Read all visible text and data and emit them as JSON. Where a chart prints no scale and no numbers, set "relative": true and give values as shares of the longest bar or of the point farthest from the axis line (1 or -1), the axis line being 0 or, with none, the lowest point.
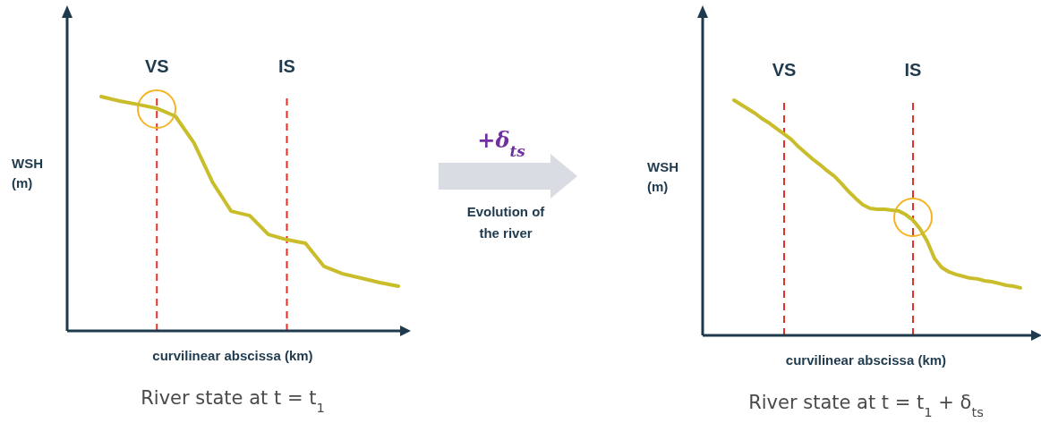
{
  "chart_data": [
    {
      "type": "line",
      "relative": true,
      "xlabel": "curvilinear abscissa (km)",
      "ylabel": "WSH (m)",
      "title": "River state at t = t$_{1}$",
      "categories": [
        null,
        null,
        null,
        "VS",
        null,
        null,
        null,
        null,
        null,
        null,
        "IS",
        null,
        null,
        null,
        null,
        null,
        null
      ],
      "series": [
        {
          "color": "#c9bd2b",
          "values": [
            1.0,
            0.981,
            0.966,
            0.95,
            0.916,
            0.802,
            0.634,
            0.511,
            0.492,
            0.412,
            0.389,
            0.374,
            0.275,
            0.244,
            0.225,
            0.206,
            0.191
          ]
        }
      ],
      "ref_lines": [
        {
          "axis": "x",
          "value": "VS",
          "color": "#e8302a",
          "line_style": "dashed"
        },
        {
          "axis": "x",
          "value": "IS",
          "color": "#e8302a",
          "line_style": "dashed"
        }
      ]
    },
    {
      "type": "other",
      "annotations": [
        "+δ$_{ts}$",
        "Evolution of the river"
      ]
    },
    {
      "type": "line",
      "relative": true,
      "xlabel": "curvilinear abscissa (km)",
      "ylabel": "WSH (m)",
      "title": "River state at t = t$_{1}$ + δ$_{ts}$",
      "categories": [
        null,
        null,
        null,
        null,
        null,
        null,
        null,
        "VS",
        null,
        null,
        null,
        null,
        null,
        null,
        null,
        null,
        null,
        null,
        null,
        null,
        null,
        null,
        null,
        null,
        null,
        "IS",
        null,
        null,
        null,
        null,
        null,
        null,
        null,
        null,
        null,
        null,
        null,
        null,
        null,
        null,
        null
      ],
      "series": [
        {
          "color": "#c9bd2b",
          "values": [
            1.0,
            0.981,
            0.962,
            0.943,
            0.92,
            0.901,
            0.878,
            0.856,
            0.833,
            0.802,
            0.776,
            0.749,
            0.726,
            0.7,
            0.677,
            0.646,
            0.612,
            0.582,
            0.555,
            0.54,
            0.536,
            0.536,
            0.532,
            0.529,
            0.513,
            0.49,
            0.452,
            0.399,
            0.327,
            0.289,
            0.27,
            0.259,
            0.251,
            0.243,
            0.24,
            0.232,
            0.228,
            0.221,
            0.213,
            0.209,
            0.202
          ]
        }
      ],
      "ref_lines": [
        {
          "axis": "x",
          "value": "VS",
          "color": "#e8302a",
          "line_style": "dashed"
        },
        {
          "axis": "x",
          "value": "IS",
          "color": "#e8302a",
          "line_style": "dashed"
        }
      ]
    }
  ]
}
